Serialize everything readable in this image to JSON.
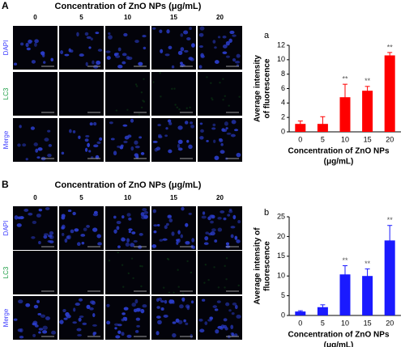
{
  "panels": [
    {
      "label": "A",
      "title": "Concentration of ZnO NPs (μg/mL)",
      "columns": [
        "0",
        "5",
        "10",
        "15",
        "20"
      ],
      "rows": [
        "DAPI",
        "LC3",
        "Merge"
      ],
      "row_colors": [
        "#3a3aff",
        "#1e9e46",
        "#3a3aff"
      ]
    },
    {
      "label": "B",
      "title": "Concentration of ZnO NPs (μg/mL)",
      "columns": [
        "0",
        "5",
        "10",
        "15",
        "20"
      ],
      "rows": [
        "DAPI",
        "LC3",
        "Merge"
      ],
      "row_colors": [
        "#3a3aff",
        "#1e9e46",
        "#3a3aff"
      ]
    }
  ],
  "chart_data": [
    {
      "type": "bar",
      "label": "a",
      "ylabel": [
        "Average intensity",
        "of fluorescence"
      ],
      "xlabel": [
        "Concentration of ZnO NPs",
        "(μg/mL)"
      ],
      "categories": [
        "0",
        "5",
        "10",
        "15",
        "20"
      ],
      "values": [
        1.1,
        1.1,
        4.8,
        5.7,
        10.6
      ],
      "errors": [
        0.4,
        1.0,
        1.8,
        0.6,
        0.4
      ],
      "annotations": [
        null,
        null,
        "**",
        "**",
        "**"
      ],
      "color": "#ff0000",
      "ylim": [
        0,
        12
      ],
      "yticks": [
        0,
        2,
        4,
        6,
        8,
        10,
        12
      ]
    },
    {
      "type": "bar",
      "label": "b",
      "ylabel": [
        "Average intensity of",
        "fluorescence"
      ],
      "xlabel": [
        "Concentration of ZnO NPs",
        "(μg/mL)"
      ],
      "categories": [
        "0",
        "5",
        "10",
        "15",
        "20"
      ],
      "values": [
        1.0,
        2.1,
        10.4,
        10.0,
        19.0
      ],
      "errors": [
        0.2,
        0.6,
        2.2,
        1.8,
        3.8
      ],
      "annotations": [
        null,
        null,
        "**",
        "**",
        "**"
      ],
      "color": "#1a1aff",
      "ylim": [
        0,
        25
      ],
      "yticks": [
        0,
        5,
        10,
        15,
        20,
        25
      ]
    }
  ]
}
